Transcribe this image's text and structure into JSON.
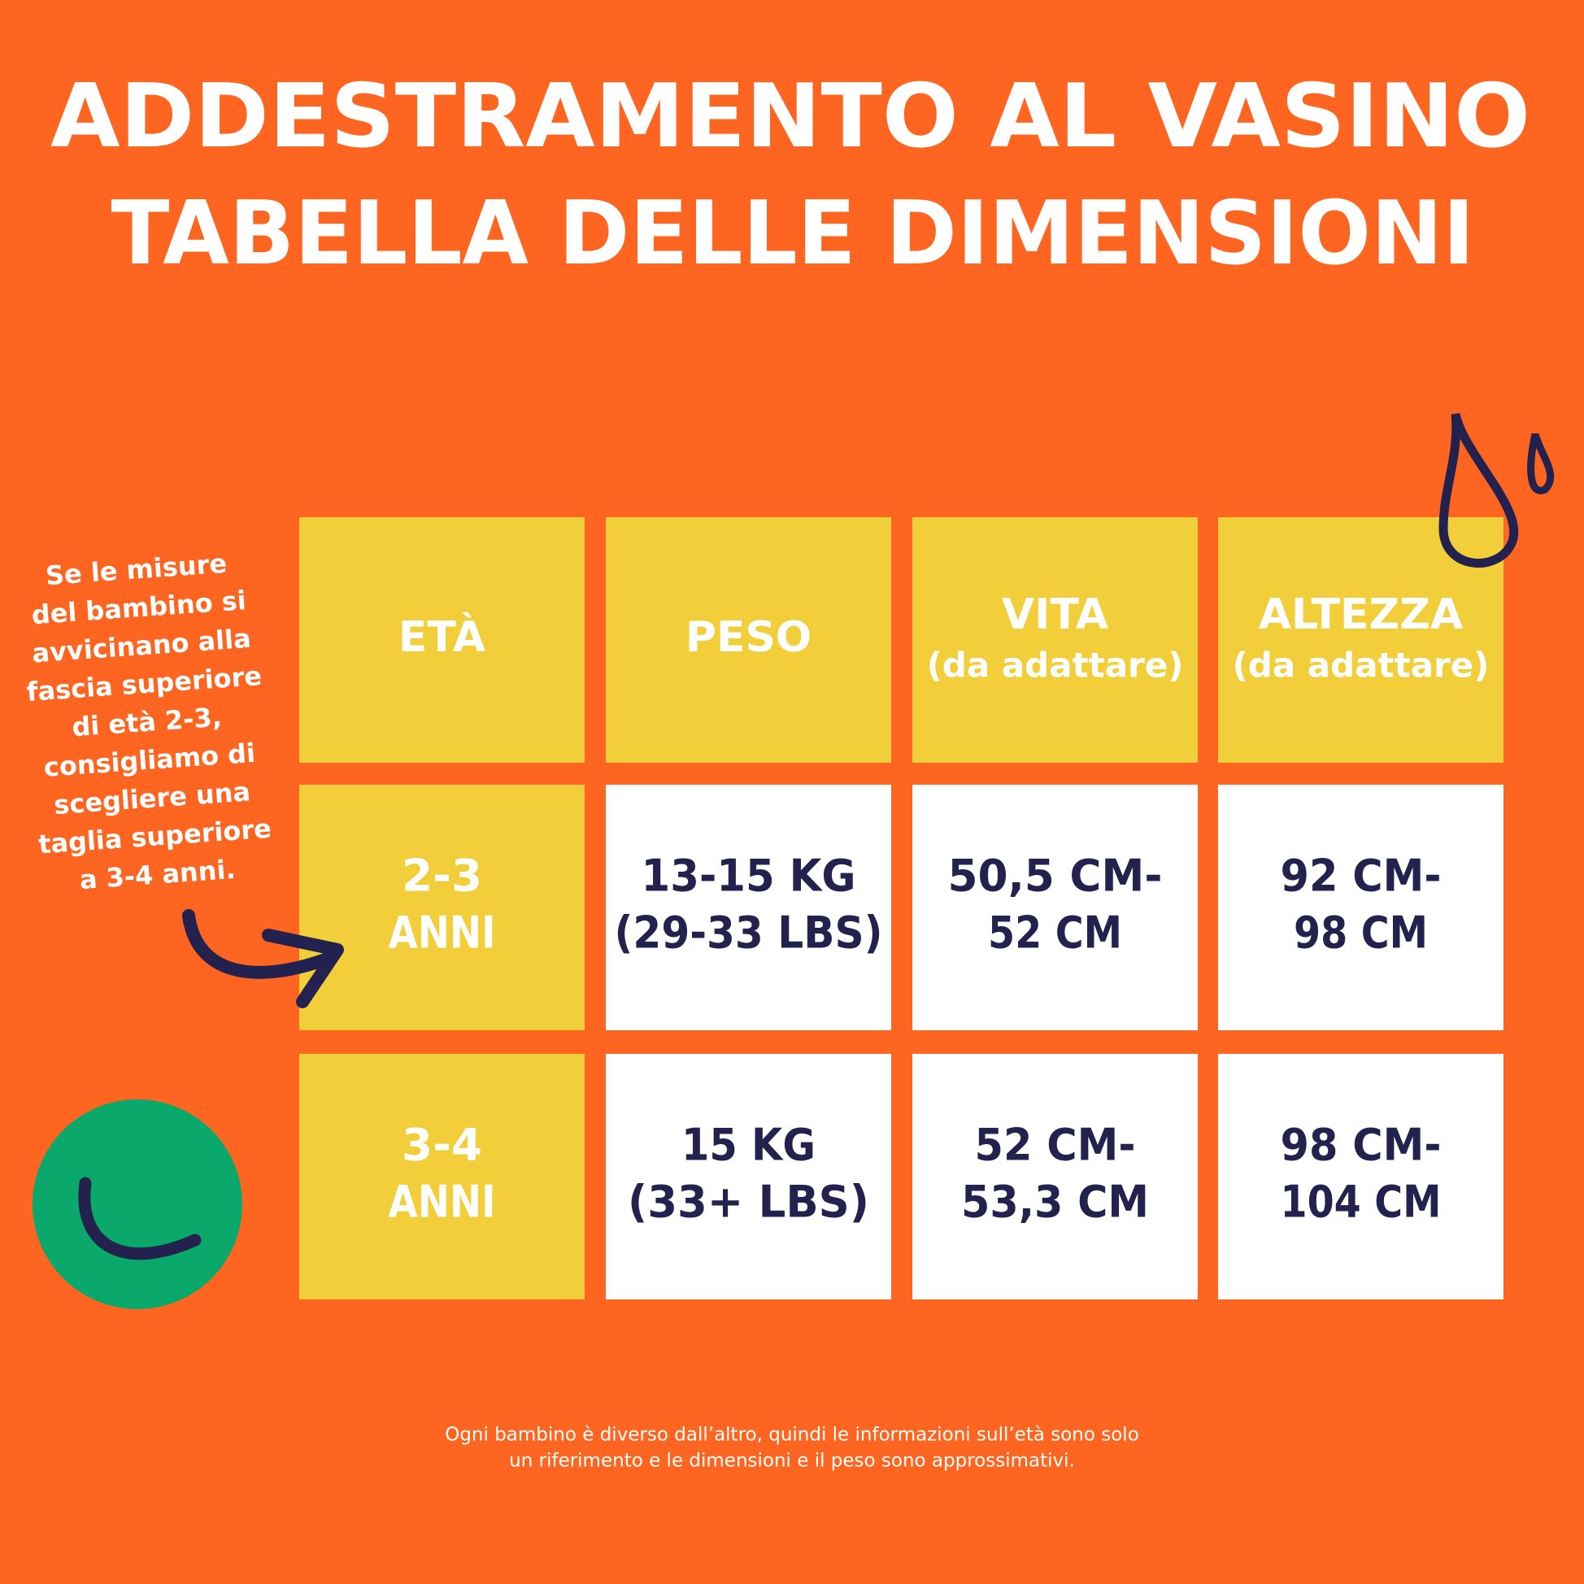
{
  "header": {
    "title": [
      "ADDESTRAMENTO AL VASINO",
      "TABELLA DELLE DIMENSIONI"
    ]
  },
  "table": {
    "columns": [
      {
        "label": "ETÀ"
      },
      {
        "label": "PESO"
      },
      {
        "label": "VITA",
        "note": "(da adattare)"
      },
      {
        "label": "ALTEZZA",
        "note": "(da adattare)"
      }
    ],
    "rows": [
      [
        [
          "2-3",
          "ANNI"
        ],
        [
          "13-15 KG",
          "(29-33 LBS)"
        ],
        [
          "50,5 CM-",
          "52 CM"
        ],
        [
          "92 CM-",
          "98 CM"
        ]
      ],
      [
        [
          "3-4",
          "ANNI"
        ],
        [
          "15 KG",
          "(33+ LBS)"
        ],
        [
          "52 CM-",
          "53,3 CM"
        ],
        [
          "98 CM-",
          "104 CM"
        ]
      ]
    ]
  },
  "side_note": [
    "Se le misure",
    "del bambino si",
    "avvicinano alla",
    "fascia superiore",
    "di età 2-3,",
    "consigliamo di",
    "scegliere una",
    "taglia superiore",
    "a 3-4 anni."
  ],
  "footnote": [
    "Ogni bambino è diverso dall’altro, quindi le informazioni sull’età sono solo",
    "un riferimento e le dimensioni e il peso sono approssimativi."
  ]
}
